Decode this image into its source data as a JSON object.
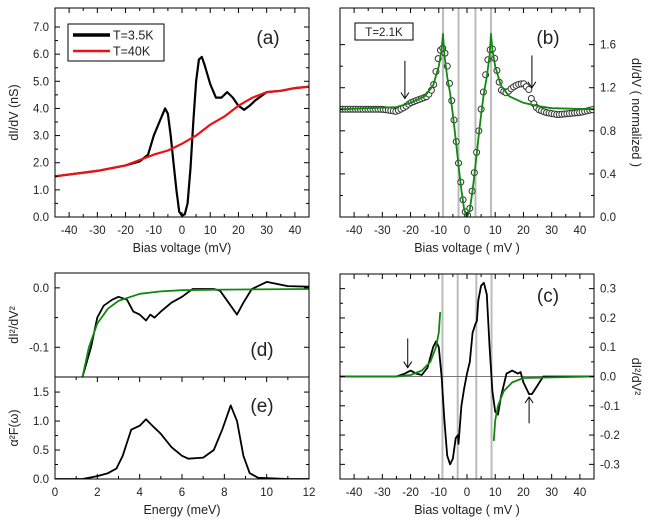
{
  "colors": {
    "black": "#000000",
    "red": "#ee1111",
    "green": "#118811",
    "gray": "#bbbbbb"
  },
  "chart_data": [
    {
      "id": "a",
      "type": "line",
      "panel_label": "(a)",
      "xlabel": "Bias voltage (mV)",
      "ylabel": "dI/dV (nS)",
      "xlim": [
        -45,
        45
      ],
      "ylim": [
        0,
        7.7
      ],
      "xticks": [
        -40,
        -30,
        -20,
        -10,
        0,
        10,
        20,
        30,
        40
      ],
      "yticks": [
        "0.0",
        "1.0",
        "2.0",
        "3.0",
        "4.0",
        "5.0",
        "6.0",
        "7.0"
      ],
      "legend": {
        "placement": "top-left",
        "entries": [
          "T=3.5K",
          "T=40K"
        ]
      },
      "series": [
        {
          "name": "T=3.5K",
          "color": "#000000",
          "x": [
            -45,
            -30,
            -20,
            -15,
            -12,
            -10,
            -8,
            -6,
            -5,
            -4,
            -3,
            -2,
            -1,
            0,
            1,
            2,
            3,
            4,
            5,
            6,
            7,
            8,
            10,
            12,
            14,
            16,
            18,
            20,
            22,
            24,
            26,
            30,
            35,
            40,
            45
          ],
          "y": [
            1.5,
            1.7,
            1.9,
            2.05,
            2.3,
            3.0,
            3.5,
            4.0,
            3.8,
            3.0,
            2.0,
            1.0,
            0.2,
            0.05,
            0.1,
            0.5,
            1.8,
            3.5,
            5.0,
            5.8,
            5.9,
            5.6,
            4.9,
            4.4,
            4.4,
            4.6,
            4.4,
            4.1,
            3.95,
            4.1,
            4.3,
            4.6,
            4.65,
            4.75,
            4.8
          ]
        },
        {
          "name": "T=40K",
          "color": "#ee1111",
          "x": [
            -45,
            -30,
            -20,
            -15,
            -10,
            -5,
            0,
            5,
            10,
            15,
            20,
            25,
            30,
            35,
            40,
            45
          ],
          "y": [
            1.5,
            1.7,
            1.9,
            2.1,
            2.3,
            2.45,
            2.7,
            3.0,
            3.4,
            3.7,
            4.1,
            4.4,
            4.6,
            4.65,
            4.75,
            4.8
          ]
        }
      ]
    },
    {
      "id": "b",
      "type": "scatter",
      "panel_label": "(b)",
      "annotation": "T=2.1K",
      "xlabel": "Bias voltage ( mV )",
      "ylabel": "dI/dV ( normalized )",
      "xlim": [
        -45,
        45
      ],
      "ylim": [
        0,
        1.94
      ],
      "xticks": [
        -40,
        -30,
        -20,
        -10,
        0,
        10,
        20,
        30,
        40
      ],
      "yticks": [
        "0.0",
        "0.4",
        "0.8",
        "1.2",
        "1.6"
      ],
      "vlines": [
        -8.5,
        -3,
        3,
        8.5
      ],
      "arrows": [
        {
          "x": -22,
          "from": 1.45,
          "to": 1.1
        },
        {
          "x": 23,
          "from": 1.5,
          "to": 1.2
        }
      ],
      "series": [
        {
          "name": "data",
          "style": "circles",
          "color": "#000000",
          "x": [
            -45,
            -30,
            -25,
            -22,
            -20,
            -17,
            -14,
            -12,
            -11,
            -10,
            -9,
            -8,
            -7,
            -6,
            -5,
            -4,
            -3,
            -2,
            -1,
            0,
            1,
            2,
            3,
            4,
            5,
            6,
            7,
            8,
            9,
            10,
            11,
            12,
            14,
            16,
            18,
            20,
            22,
            23,
            25,
            28,
            32,
            36,
            40,
            45
          ],
          "y": [
            1.0,
            1.0,
            0.98,
            1.02,
            1.06,
            1.09,
            1.12,
            1.2,
            1.35,
            1.5,
            1.58,
            1.55,
            1.4,
            1.2,
            1.0,
            0.75,
            0.5,
            0.28,
            0.08,
            0.0,
            0.08,
            0.28,
            0.5,
            0.75,
            1.0,
            1.2,
            1.4,
            1.55,
            1.56,
            1.45,
            1.3,
            1.18,
            1.15,
            1.2,
            1.23,
            1.24,
            1.18,
            1.08,
            1.0,
            0.97,
            0.95,
            0.96,
            0.97,
            1.0
          ]
        },
        {
          "name": "fit",
          "style": "line",
          "color": "#118811",
          "x": [
            -45,
            -25,
            -20,
            -15,
            -12,
            -10,
            -9,
            -8.5,
            -8,
            -7,
            -6,
            -5,
            -4,
            -3,
            -2,
            -1,
            0,
            1,
            2,
            3,
            4,
            5,
            6,
            7,
            8,
            8.5,
            9,
            10,
            12,
            15,
            20,
            25,
            30,
            45
          ],
          "y": [
            1.0,
            1.02,
            1.06,
            1.12,
            1.22,
            1.4,
            1.55,
            1.7,
            1.5,
            1.3,
            1.15,
            0.95,
            0.72,
            0.48,
            0.25,
            0.07,
            0.0,
            0.07,
            0.25,
            0.48,
            0.72,
            0.95,
            1.15,
            1.3,
            1.5,
            1.7,
            1.55,
            1.4,
            1.22,
            1.12,
            1.06,
            1.03,
            1.01,
            1.0
          ]
        }
      ]
    },
    {
      "id": "d",
      "type": "line",
      "panel_label": "(d)",
      "xlabel": "",
      "ylabel": "dI²/dV²",
      "xlim": [
        0,
        12
      ],
      "ylim": [
        -0.15,
        0.025
      ],
      "yticks": [
        "-0.1",
        "0.0"
      ],
      "ytick_values": [
        -0.1,
        0.0
      ],
      "series": [
        {
          "name": "data",
          "color": "#000000",
          "x": [
            1.3,
            1.7,
            2,
            2.3,
            2.7,
            3,
            3.4,
            3.7,
            4,
            4.3,
            4.5,
            4.7,
            5,
            5.5,
            6,
            6.5,
            7,
            7.5,
            7.8,
            8.2,
            8.6,
            8.9,
            9.3,
            10,
            11,
            12
          ],
          "y": [
            -0.15,
            -0.1,
            -0.05,
            -0.03,
            -0.02,
            -0.015,
            -0.02,
            -0.04,
            -0.045,
            -0.055,
            -0.045,
            -0.05,
            -0.04,
            -0.025,
            -0.015,
            -0.002,
            -0.002,
            -0.002,
            -0.005,
            -0.025,
            -0.045,
            -0.025,
            -0.002,
            0.01,
            0.003,
            0.002
          ]
        },
        {
          "name": "fit",
          "color": "#118811",
          "x": [
            1.3,
            1.6,
            2,
            2.5,
            3,
            4,
            5,
            6,
            8,
            12
          ],
          "y": [
            -0.15,
            -0.1,
            -0.06,
            -0.035,
            -0.022,
            -0.01,
            -0.006,
            -0.004,
            -0.003,
            -0.002
          ]
        }
      ]
    },
    {
      "id": "e",
      "type": "line",
      "panel_label": "(e)",
      "xlabel": "Energy (meV)",
      "ylabel": "α²F(ω)",
      "xlim": [
        0,
        12
      ],
      "ylim": [
        0,
        1.76
      ],
      "xticks": [
        0,
        2,
        4,
        6,
        8,
        10,
        12
      ],
      "yticks": [
        "0.0",
        "0.5",
        "1.0",
        "1.5"
      ],
      "series": [
        {
          "name": "alpha2F",
          "color": "#000000",
          "x": [
            0,
            1.3,
            2,
            2.5,
            2.9,
            3.2,
            3.6,
            4,
            4.3,
            4.6,
            5,
            5.5,
            6,
            6.3,
            7,
            7.5,
            7.9,
            8.3,
            8.6,
            8.9,
            9.2,
            9.6,
            11,
            12
          ],
          "y": [
            0,
            0,
            0.05,
            0.1,
            0.18,
            0.4,
            0.85,
            0.92,
            1.03,
            0.92,
            0.78,
            0.55,
            0.4,
            0.35,
            0.37,
            0.5,
            0.85,
            1.27,
            1.0,
            0.4,
            0.1,
            0.02,
            0,
            0
          ]
        }
      ]
    },
    {
      "id": "c",
      "type": "line",
      "panel_label": "(c)",
      "xlabel": "Bias voltage ( mV )",
      "ylabel": "dI²/dV²",
      "xlim": [
        -45,
        45
      ],
      "ylim": [
        -0.35,
        0.35
      ],
      "xticks": [
        -40,
        -30,
        -20,
        -10,
        0,
        10,
        20,
        30,
        40
      ],
      "yticks": [
        "-0.3",
        "-0.2",
        "-0.1",
        "0.0",
        "0.1",
        "0.2",
        "0.3"
      ],
      "vlines": [
        -8.7,
        -3.3,
        3.3,
        8.7
      ],
      "arrows": [
        {
          "x": -21,
          "from": 0.13,
          "to": 0.03
        },
        {
          "x": 22,
          "from": -0.16,
          "to": -0.07
        }
      ],
      "series": [
        {
          "name": "data",
          "color": "#000000",
          "x": [
            -45,
            -25,
            -22,
            -20,
            -18,
            -16,
            -14,
            -12,
            -11,
            -10,
            -9,
            -8,
            -7,
            -6,
            -5,
            -4,
            -3.2,
            -3,
            -2,
            -1,
            0,
            1,
            2,
            3,
            3.5,
            4,
            5,
            6,
            7,
            8,
            9,
            10,
            11,
            12,
            14,
            16,
            18,
            19,
            20,
            22,
            23,
            25,
            27,
            45
          ],
          "y": [
            0,
            0,
            0.01,
            0.02,
            0.01,
            0.005,
            0.03,
            0.1,
            0.12,
            0.1,
            0.0,
            -0.15,
            -0.27,
            -0.3,
            -0.28,
            -0.21,
            -0.2,
            -0.23,
            -0.1,
            -0.04,
            0.01,
            0.05,
            0.15,
            0.18,
            0.19,
            0.26,
            0.31,
            0.32,
            0.28,
            0.1,
            -0.05,
            -0.12,
            -0.13,
            -0.07,
            0.01,
            0.02,
            0.01,
            0.015,
            -0.02,
            -0.06,
            -0.06,
            -0.03,
            0.0,
            0
          ]
        },
        {
          "name": "fit-negative-bias",
          "color": "#118811",
          "x": [
            -45,
            -25,
            -20,
            -16,
            -13,
            -11,
            -10,
            -9.5
          ],
          "y": [
            0,
            0,
            0.005,
            0.02,
            0.05,
            0.1,
            0.15,
            0.22
          ]
        },
        {
          "name": "fit-positive-bias",
          "color": "#118811",
          "x": [
            9.5,
            10,
            11,
            13,
            16,
            20,
            45
          ],
          "y": [
            -0.22,
            -0.15,
            -0.1,
            -0.05,
            -0.02,
            -0.005,
            0
          ]
        }
      ]
    }
  ]
}
